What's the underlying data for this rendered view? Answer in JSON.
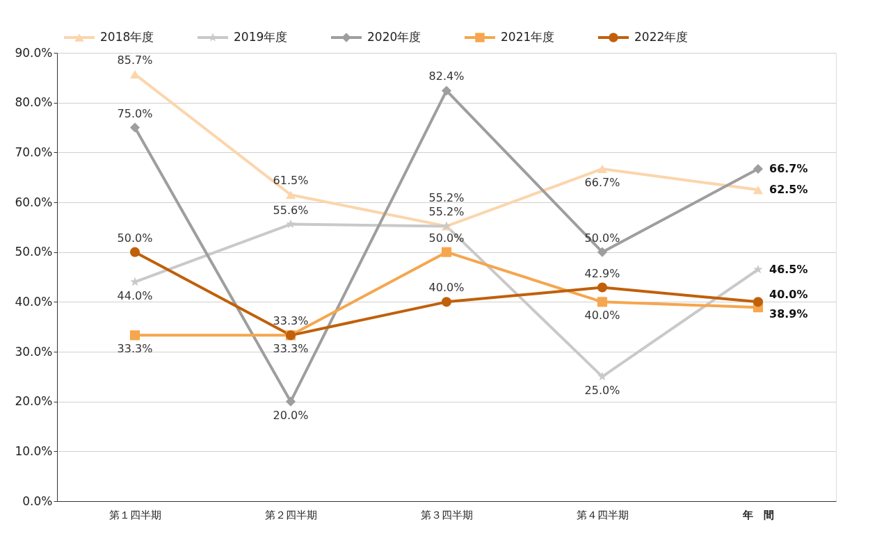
{
  "chart_data": {
    "type": "line",
    "categories": [
      "第１四半期",
      "第２四半期",
      "第３四半期",
      "第４四半期",
      "年　間"
    ],
    "series": [
      {
        "name": "2018年度",
        "color": "#fcd5ac",
        "marker": "triangle",
        "values": [
          85.7,
          61.5,
          55.2,
          66.7,
          62.5
        ],
        "value_labels": [
          "85.7%",
          "61.5%",
          "55.2%",
          "66.7%",
          "62.5%"
        ]
      },
      {
        "name": "2019年度",
        "color": "#c9c9c9",
        "marker": "star",
        "values": [
          44.0,
          55.6,
          55.2,
          25.0,
          46.5
        ],
        "value_labels": [
          "44.0%",
          "55.6%",
          "55.2%",
          "25.0%",
          "46.5%"
        ]
      },
      {
        "name": "2020年度",
        "color": "#9e9e9e",
        "marker": "diamond",
        "values": [
          75.0,
          20.0,
          82.4,
          50.0,
          66.7
        ],
        "value_labels": [
          "75.0%",
          "20.0%",
          "82.4%",
          "50.0%",
          "66.7%"
        ]
      },
      {
        "name": "2021年度",
        "color": "#f5a64e",
        "marker": "square",
        "values": [
          33.3,
          33.3,
          50.0,
          40.0,
          38.9
        ],
        "value_labels": [
          "33.3%",
          "33.3%",
          "50.0%",
          "40.0%",
          "38.9%"
        ]
      },
      {
        "name": "2022年度",
        "color": "#c0600a",
        "marker": "circle",
        "values": [
          50.0,
          33.3,
          40.0,
          42.9,
          40.0
        ],
        "value_labels": [
          "50.0%",
          "33.3%",
          "40.0%",
          "42.9%",
          "40.0%"
        ]
      }
    ],
    "ylim": [
      0,
      90
    ],
    "yticks": [
      {
        "value": 0,
        "label": "0.0%"
      },
      {
        "value": 10,
        "label": "10.0%"
      },
      {
        "value": 20,
        "label": "20.0%"
      },
      {
        "value": 30,
        "label": "30.0%"
      },
      {
        "value": 40,
        "label": "40.0%"
      },
      {
        "value": 50,
        "label": "50.0%"
      },
      {
        "value": 60,
        "label": "60.0%"
      },
      {
        "value": 70,
        "label": "70.0%"
      },
      {
        "value": 80,
        "label": "80.0%"
      },
      {
        "value": 90,
        "label": "90.0%"
      }
    ],
    "grid": "y",
    "legend": "top",
    "line_style": "solid"
  }
}
